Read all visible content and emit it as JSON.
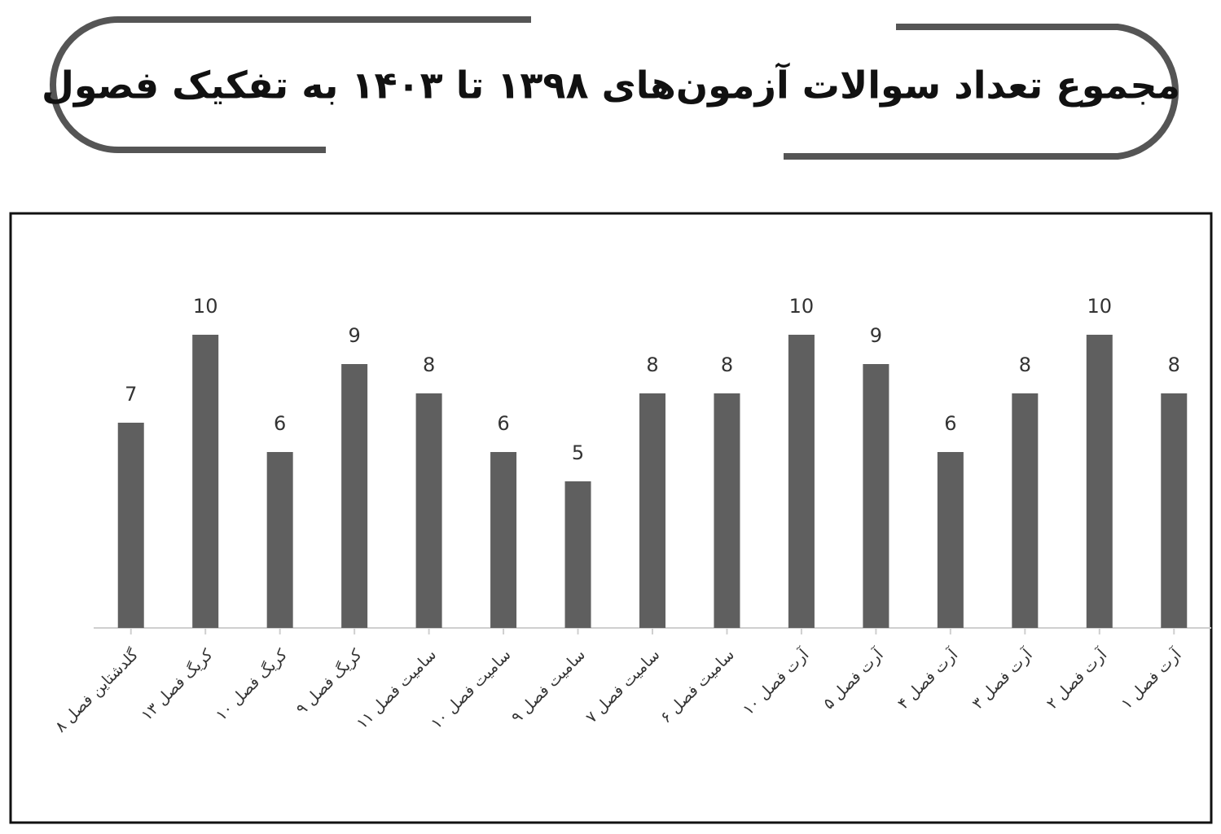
{
  "chart_data": {
    "type": "bar",
    "title": "مجموع تعداد سوالات آزمون‌های ۱۳۹۸ تا ۱۴۰۳ به تفکیک فصول",
    "categories": [
      "گلدشتاین فصل ۸",
      "کریگ فصل ۱۳",
      "کریگ فصل ۱۰",
      "کریگ فصل ۹",
      "سامیت فصل ۱۱",
      "سامیت فصل ۱۰",
      "سامیت فصل ۹",
      "سامیت فصل ۷",
      "سامیت فصل ۶",
      "آرت فصل ۱۰",
      "آرت فصل ۵",
      "آرت فصل ۴",
      "آرت فصل ۳",
      "آرت فصل ۲",
      "آرت فصل ۱"
    ],
    "values": [
      7,
      10,
      6,
      9,
      8,
      6,
      5,
      8,
      8,
      10,
      9,
      6,
      8,
      10,
      8
    ],
    "color": "#5f5f5f",
    "ylim": [
      0,
      10
    ]
  }
}
